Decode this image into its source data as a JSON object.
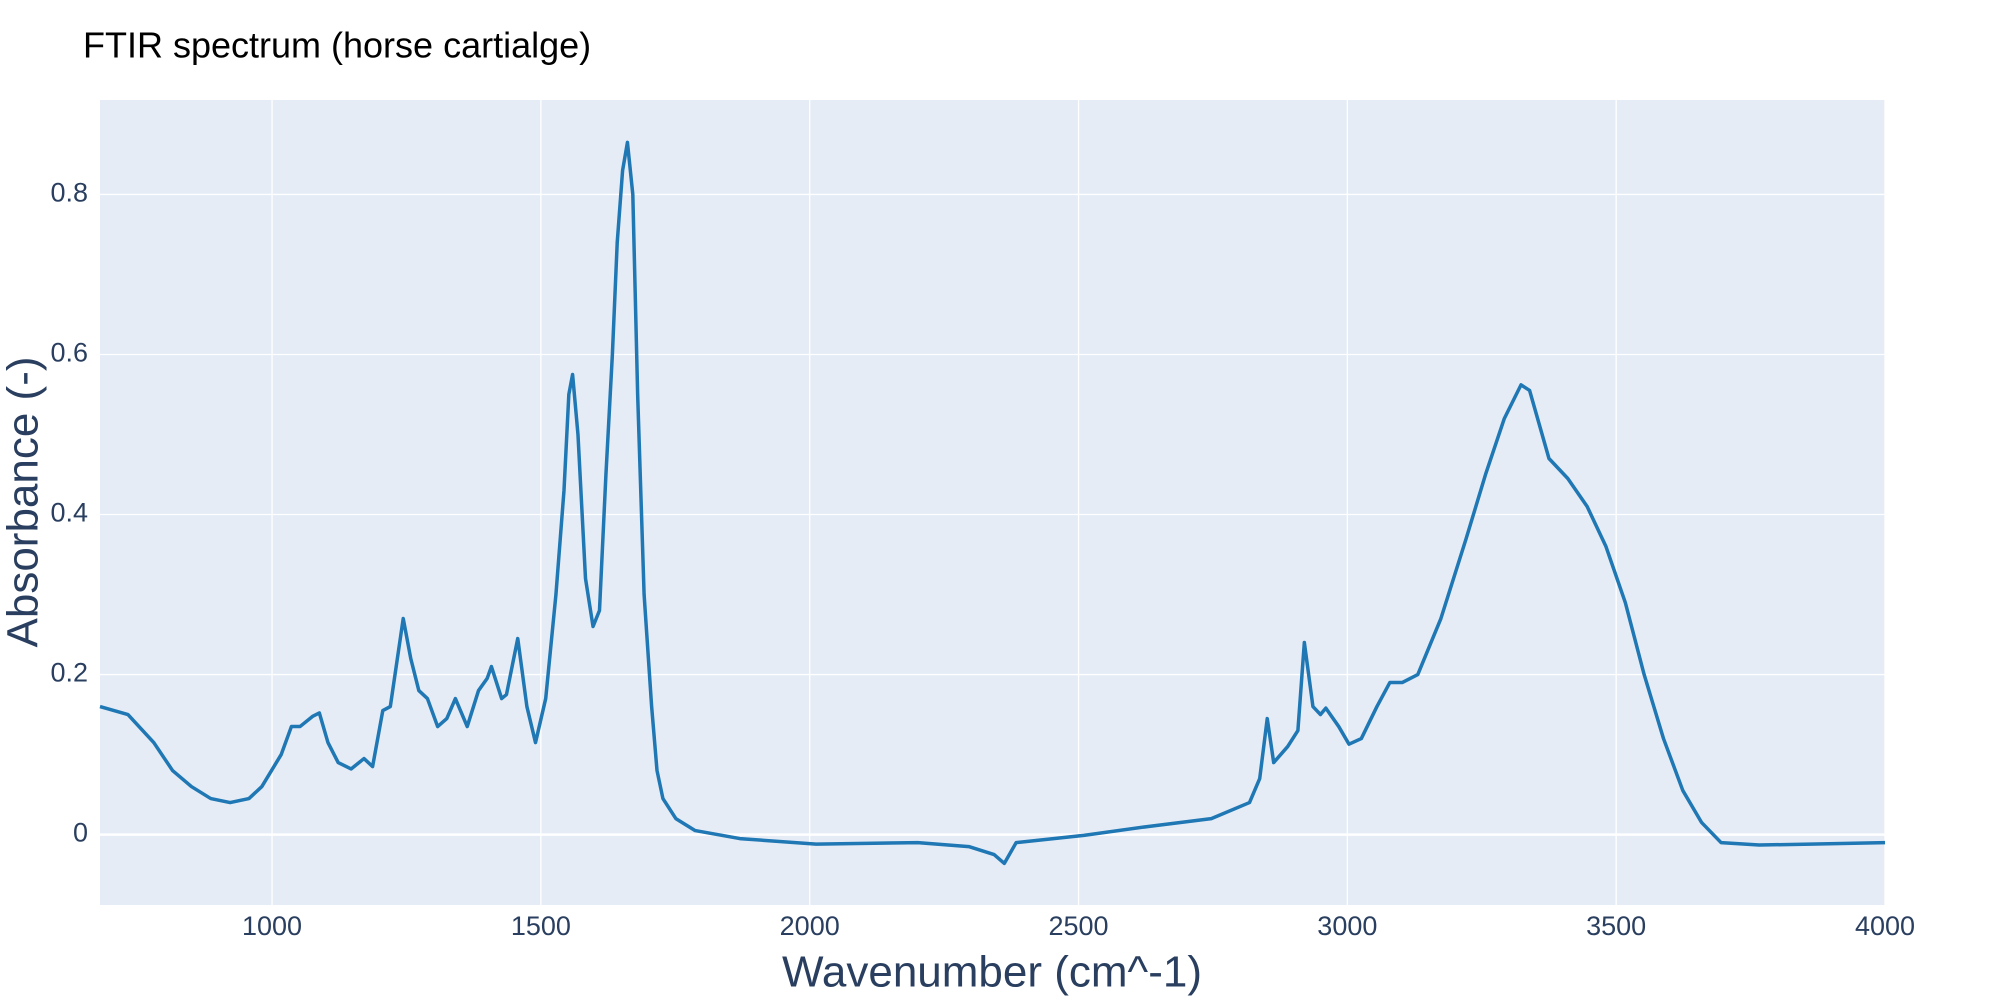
{
  "chart_data": {
    "type": "line",
    "title": "FTIR spectrum (horse cartialge)",
    "x_label": "Wavenumber (cm^-1)",
    "y_label": "Absorbance (-)",
    "color": "#1f77b4",
    "grid": true,
    "xlim": [
      680,
      4000
    ],
    "ylim": [
      -0.088,
      0.918
    ],
    "xticks": [
      1000,
      1500,
      2000,
      2500,
      3000,
      3500,
      4000
    ],
    "yticks": [
      0,
      0.2,
      0.4,
      0.6,
      0.8
    ],
    "x": [
      680,
      732,
      780,
      815,
      850,
      886,
      922,
      957,
      981,
      1017,
      1036,
      1052,
      1076,
      1088,
      1104,
      1123,
      1147,
      1171,
      1187,
      1206,
      1220,
      1244,
      1258,
      1273,
      1289,
      1308,
      1325,
      1341,
      1363,
      1384,
      1400,
      1408,
      1427,
      1436,
      1457,
      1474,
      1490,
      1509,
      1528,
      1543,
      1552,
      1559,
      1569,
      1583,
      1597,
      1609,
      1621,
      1633,
      1642,
      1652,
      1661,
      1671,
      1680,
      1692,
      1706,
      1716,
      1727,
      1751,
      1787,
      1870,
      2012,
      2201,
      2296,
      2343,
      2362,
      2384,
      2510,
      2628,
      2747,
      2818,
      2837,
      2851,
      2863,
      2889,
      2908,
      2920,
      2936,
      2950,
      2960,
      2984,
      3003,
      3026,
      3055,
      3079,
      3102,
      3131,
      3174,
      3221,
      3257,
      3292,
      3323,
      3339,
      3375,
      3410,
      3446,
      3481,
      3517,
      3552,
      3588,
      3624,
      3659,
      3695,
      3766,
      3861,
      4000
    ],
    "values": [
      0.16,
      0.15,
      0.115,
      0.08,
      0.06,
      0.045,
      0.04,
      0.045,
      0.06,
      0.1,
      0.135,
      0.135,
      0.148,
      0.152,
      0.115,
      0.09,
      0.082,
      0.095,
      0.085,
      0.155,
      0.16,
      0.27,
      0.22,
      0.18,
      0.17,
      0.135,
      0.145,
      0.17,
      0.135,
      0.18,
      0.195,
      0.21,
      0.17,
      0.175,
      0.245,
      0.16,
      0.115,
      0.17,
      0.3,
      0.43,
      0.55,
      0.575,
      0.5,
      0.32,
      0.26,
      0.28,
      0.45,
      0.6,
      0.74,
      0.83,
      0.865,
      0.8,
      0.55,
      0.3,
      0.16,
      0.08,
      0.045,
      0.02,
      0.005,
      -0.005,
      -0.012,
      -0.01,
      -0.015,
      -0.025,
      -0.036,
      -0.01,
      -0.001,
      0.01,
      0.02,
      0.04,
      0.07,
      0.145,
      0.09,
      0.11,
      0.13,
      0.24,
      0.16,
      0.15,
      0.158,
      0.135,
      0.113,
      0.12,
      0.16,
      0.19,
      0.19,
      0.2,
      0.27,
      0.37,
      0.45,
      0.52,
      0.562,
      0.555,
      0.47,
      0.445,
      0.41,
      0.36,
      0.29,
      0.2,
      0.12,
      0.055,
      0.015,
      -0.01,
      -0.013,
      -0.012,
      -0.01
    ]
  }
}
